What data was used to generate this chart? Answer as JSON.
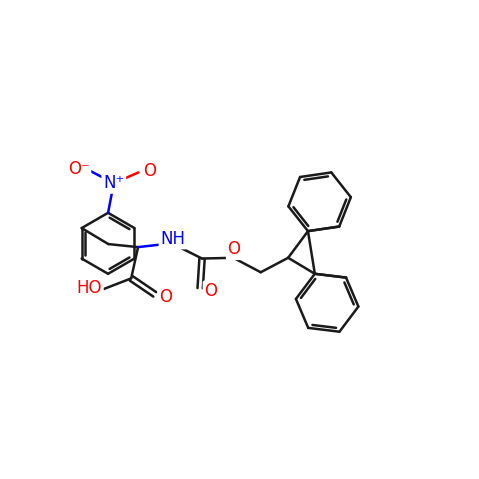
{
  "bg_color": "#ffffff",
  "bond_color": "#1a1a1a",
  "bond_lw": 1.8,
  "atom_colors": {
    "N": "#0000ff",
    "O": "#ff0000",
    "C": "#1a1a1a"
  },
  "font_size": 12,
  "figsize": [
    4.79,
    4.79
  ],
  "dpi": 100,
  "xlim": [
    -1.0,
    11.5
  ],
  "ylim": [
    1.5,
    9.5
  ]
}
